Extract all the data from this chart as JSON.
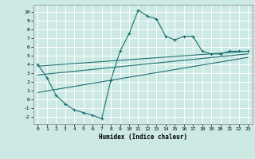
{
  "title": "",
  "xlabel": "Humidex (Indice chaleur)",
  "bg_color": "#cce9e4",
  "grid_color": "#ffffff",
  "line_color": "#1a7070",
  "xlim": [
    -0.5,
    23.5
  ],
  "ylim": [
    -2.8,
    10.8
  ],
  "xticks": [
    0,
    1,
    2,
    3,
    4,
    5,
    6,
    7,
    8,
    9,
    10,
    11,
    12,
    13,
    14,
    15,
    16,
    17,
    18,
    19,
    20,
    21,
    22,
    23
  ],
  "yticks": [
    -2,
    -1,
    0,
    1,
    2,
    3,
    4,
    5,
    6,
    7,
    8,
    9,
    10
  ],
  "curve_x": [
    0,
    1,
    2,
    3,
    4,
    5,
    6,
    7,
    8,
    9,
    10,
    11,
    12,
    13,
    14,
    15,
    16,
    17,
    18,
    19,
    20,
    21,
    22,
    23
  ],
  "curve_y": [
    4,
    2.5,
    0.5,
    -0.5,
    -1.2,
    -1.5,
    -1.8,
    -2.2,
    2.2,
    5.5,
    7.5,
    10.2,
    9.5,
    9.2,
    7.2,
    6.8,
    7.2,
    7.2,
    5.5,
    5.2,
    5.2,
    5.5,
    5.5,
    5.5
  ],
  "line1_x": [
    0,
    23
  ],
  "line1_y": [
    3.8,
    5.5
  ],
  "line2_x": [
    0,
    23
  ],
  "line2_y": [
    2.8,
    5.2
  ],
  "line3_x": [
    0,
    23
  ],
  "line3_y": [
    0.8,
    4.8
  ]
}
